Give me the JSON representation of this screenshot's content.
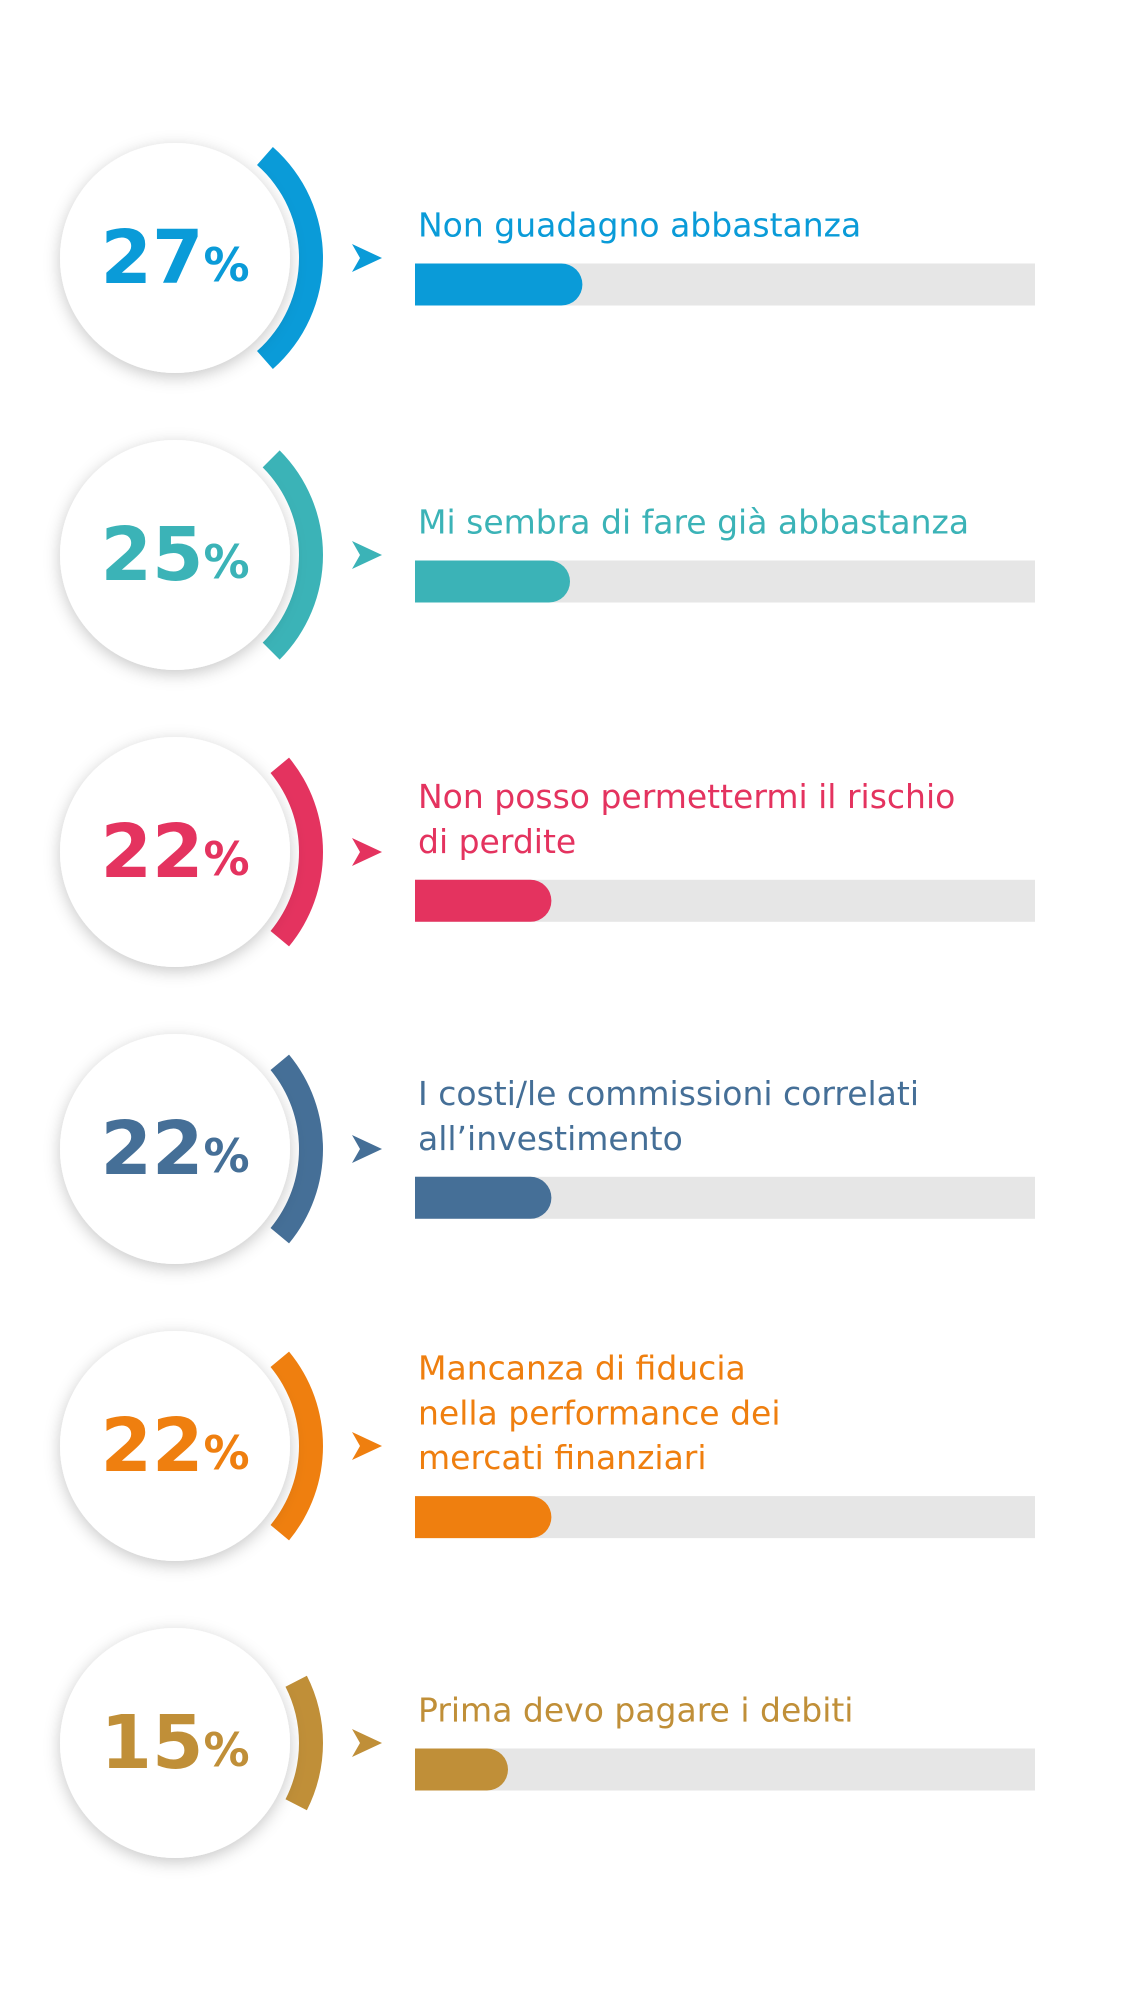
{
  "chart_data": {
    "type": "bar",
    "categories": [
      [
        "Non guadagno abbastanza"
      ],
      [
        "Mi sembra di fare già abbastanza"
      ],
      [
        "Non posso permettermi il rischio",
        "di perdite"
      ],
      [
        "I costi/le commissioni correlati",
        "all’investimento"
      ],
      [
        "Mancanza di fiducia",
        "nella performance dei",
        "mercati finanziari"
      ],
      [
        "Prima devo pagare i debiti"
      ]
    ],
    "values": [
      27,
      25,
      22,
      22,
      22,
      15
    ],
    "unit": "%",
    "colors": [
      "#0a9bd8",
      "#3bb3b7",
      "#e4335f",
      "#456f97",
      "#ef7f0f",
      "#c08f38"
    ],
    "xlim": [
      0,
      100
    ]
  }
}
